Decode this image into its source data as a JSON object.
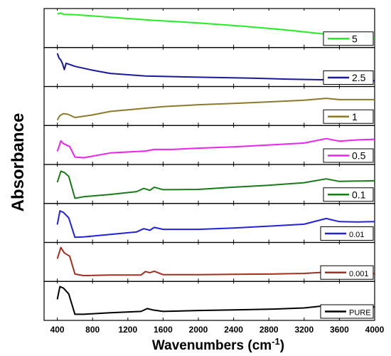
{
  "chart_data": {
    "type": "line",
    "ylabel": "Absorbance",
    "xlabel": "Wavenumbers (cm",
    "xlabel_sup": "-1",
    "xlabel_end": ")",
    "xlim": [
      250,
      4000
    ],
    "xticks": [
      400,
      800,
      1200,
      1600,
      2000,
      2400,
      2800,
      3200,
      3600,
      4000
    ],
    "x_tick_labels": [
      "400",
      "800",
      "1200",
      "1600",
      "2000",
      "2400",
      "2800",
      "3200",
      "3600",
      "4000"
    ],
    "legend_placement": "right of each panel",
    "series": [
      {
        "name": "5",
        "color": "#22ee22",
        "points": [
          [
            400,
            0.94
          ],
          [
            440,
            0.97
          ],
          [
            470,
            0.93
          ],
          [
            600,
            0.92
          ],
          [
            1000,
            0.84
          ],
          [
            1500,
            0.74
          ],
          [
            2000,
            0.66
          ],
          [
            2500,
            0.56
          ],
          [
            3000,
            0.44
          ],
          [
            3400,
            0.32
          ],
          [
            3700,
            0.23
          ],
          [
            4000,
            0.18
          ]
        ]
      },
      {
        "name": "2.5",
        "color": "#1a1a99",
        "points": [
          [
            400,
            0.93
          ],
          [
            420,
            0.78
          ],
          [
            440,
            0.72
          ],
          [
            460,
            0.6
          ],
          [
            480,
            0.42
          ],
          [
            500,
            0.62
          ],
          [
            600,
            0.52
          ],
          [
            800,
            0.4
          ],
          [
            1000,
            0.3
          ],
          [
            1400,
            0.22
          ],
          [
            2000,
            0.18
          ],
          [
            2600,
            0.15
          ],
          [
            3000,
            0.12
          ],
          [
            3400,
            0.1
          ],
          [
            3800,
            0.08
          ],
          [
            4000,
            0.07
          ]
        ]
      },
      {
        "name": "1",
        "color": "#8c7a2a",
        "points": [
          [
            400,
            0.06
          ],
          [
            430,
            0.2
          ],
          [
            470,
            0.26
          ],
          [
            520,
            0.24
          ],
          [
            600,
            0.14
          ],
          [
            800,
            0.22
          ],
          [
            1000,
            0.33
          ],
          [
            1400,
            0.43
          ],
          [
            1600,
            0.48
          ],
          [
            2000,
            0.54
          ],
          [
            2400,
            0.58
          ],
          [
            2800,
            0.63
          ],
          [
            3200,
            0.68
          ],
          [
            3450,
            0.74
          ],
          [
            3600,
            0.7
          ],
          [
            3800,
            0.7
          ],
          [
            4000,
            0.7
          ]
        ]
      },
      {
        "name": "0.5",
        "color": "#ee22ee",
        "points": [
          [
            400,
            0.3
          ],
          [
            440,
            0.63
          ],
          [
            470,
            0.54
          ],
          [
            540,
            0.45
          ],
          [
            600,
            0.12
          ],
          [
            700,
            0.1
          ],
          [
            1000,
            0.25
          ],
          [
            1400,
            0.31
          ],
          [
            1500,
            0.36
          ],
          [
            1700,
            0.36
          ],
          [
            2000,
            0.4
          ],
          [
            2400,
            0.44
          ],
          [
            2800,
            0.5
          ],
          [
            3200,
            0.56
          ],
          [
            3450,
            0.7
          ],
          [
            3600,
            0.62
          ],
          [
            3800,
            0.66
          ],
          [
            4000,
            0.68
          ]
        ]
      },
      {
        "name": "0.1",
        "color": "#1a7a1a",
        "points": [
          [
            400,
            0.55
          ],
          [
            440,
            0.9
          ],
          [
            480,
            0.86
          ],
          [
            530,
            0.74
          ],
          [
            600,
            0.05
          ],
          [
            700,
            0.1
          ],
          [
            1000,
            0.17
          ],
          [
            1300,
            0.26
          ],
          [
            1380,
            0.36
          ],
          [
            1450,
            0.3
          ],
          [
            1500,
            0.4
          ],
          [
            1600,
            0.32
          ],
          [
            2000,
            0.33
          ],
          [
            2400,
            0.4
          ],
          [
            2800,
            0.46
          ],
          [
            3200,
            0.54
          ],
          [
            3450,
            0.66
          ],
          [
            3600,
            0.58
          ],
          [
            3800,
            0.59
          ],
          [
            4000,
            0.6
          ]
        ]
      },
      {
        "name": "0.01",
        "color": "#2222dd",
        "points": [
          [
            400,
            0.45
          ],
          [
            430,
            0.88
          ],
          [
            470,
            0.83
          ],
          [
            530,
            0.66
          ],
          [
            600,
            0.05
          ],
          [
            700,
            0.06
          ],
          [
            1000,
            0.14
          ],
          [
            1300,
            0.22
          ],
          [
            1380,
            0.32
          ],
          [
            1450,
            0.27
          ],
          [
            1500,
            0.36
          ],
          [
            1600,
            0.3
          ],
          [
            2000,
            0.3
          ],
          [
            2400,
            0.34
          ],
          [
            2800,
            0.4
          ],
          [
            3200,
            0.46
          ],
          [
            3450,
            0.64
          ],
          [
            3600,
            0.54
          ],
          [
            3800,
            0.53
          ],
          [
            4000,
            0.54
          ]
        ]
      },
      {
        "name": "0.001",
        "color": "#a03020",
        "points": [
          [
            400,
            0.6
          ],
          [
            440,
            0.95
          ],
          [
            480,
            0.78
          ],
          [
            540,
            0.68
          ],
          [
            600,
            0.12
          ],
          [
            700,
            0.07
          ],
          [
            1000,
            0.09
          ],
          [
            1350,
            0.09
          ],
          [
            1400,
            0.2
          ],
          [
            1450,
            0.16
          ],
          [
            1500,
            0.21
          ],
          [
            1600,
            0.1
          ],
          [
            2000,
            0.1
          ],
          [
            2400,
            0.11
          ],
          [
            2800,
            0.12
          ],
          [
            3200,
            0.14
          ],
          [
            3450,
            0.18
          ],
          [
            3600,
            0.14
          ],
          [
            3800,
            0.13
          ],
          [
            4000,
            0.13
          ]
        ]
      },
      {
        "name": "PURE",
        "color": "#000000",
        "points": [
          [
            400,
            0.55
          ],
          [
            430,
            0.95
          ],
          [
            470,
            0.9
          ],
          [
            530,
            0.72
          ],
          [
            600,
            0.08
          ],
          [
            700,
            0.08
          ],
          [
            1000,
            0.13
          ],
          [
            1350,
            0.17
          ],
          [
            1420,
            0.26
          ],
          [
            1480,
            0.22
          ],
          [
            1600,
            0.17
          ],
          [
            2000,
            0.2
          ],
          [
            2400,
            0.22
          ],
          [
            2800,
            0.24
          ],
          [
            3200,
            0.28
          ],
          [
            3450,
            0.35
          ],
          [
            3600,
            0.3
          ],
          [
            3800,
            0.3
          ],
          [
            4000,
            0.31
          ]
        ]
      }
    ]
  }
}
